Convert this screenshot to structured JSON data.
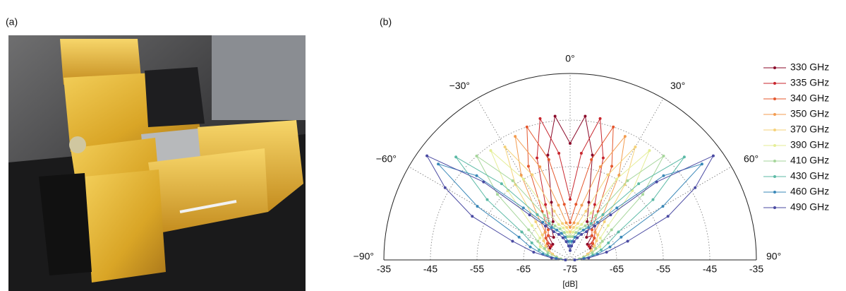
{
  "panel_labels": [
    "(a)",
    "(b)"
  ],
  "chart_data": {
    "type": "polar-half",
    "xlabel": "[dB]",
    "x": [
      -90,
      -84,
      -78,
      -72,
      -66,
      -60,
      -54,
      -48,
      -42,
      -36,
      -30,
      -24,
      -18,
      -12,
      -6,
      0,
      6,
      12,
      18,
      24,
      30,
      36,
      42,
      48,
      54,
      60,
      66,
      72,
      78,
      84,
      90
    ],
    "rlim": [
      -75,
      -35
    ],
    "rticks": [
      -75,
      -65,
      -55,
      -45,
      -35
    ],
    "thetaticks": [
      {
        "value": -90,
        "label": "−90°"
      },
      {
        "value": -60,
        "label": "−60°"
      },
      {
        "value": -30,
        "label": "−30°"
      },
      {
        "value": 0,
        "label": "0°"
      },
      {
        "value": 30,
        "label": "30°"
      },
      {
        "value": 60,
        "label": "60°"
      },
      {
        "value": 90,
        "label": "90°"
      }
    ],
    "grid": true,
    "legend": "right",
    "series": [
      {
        "name": "330 GHz",
        "color": "#8b0a2a",
        "values": [
          -74,
          -73,
          -72,
          -71,
          -70,
          -70,
          -69,
          -70,
          -68,
          -69,
          -67,
          -66,
          -62,
          -52,
          -44,
          -50,
          -44,
          -52,
          -62,
          -66,
          -67,
          -69,
          -68,
          -70,
          -69,
          -70,
          -70,
          -71,
          -72,
          -73,
          -74
        ]
      },
      {
        "name": "335 GHz",
        "color": "#c8262e",
        "values": [
          -74,
          -73,
          -72,
          -71,
          -70,
          -69,
          -70,
          -68,
          -67,
          -66,
          -66,
          -62,
          -52,
          -44,
          -52,
          -62,
          -52,
          -44,
          -52,
          -62,
          -66,
          -66,
          -67,
          -68,
          -70,
          -69,
          -70,
          -71,
          -72,
          -73,
          -74
        ]
      },
      {
        "name": "340 GHz",
        "color": "#e4572e",
        "values": [
          -74,
          -73,
          -72,
          -71,
          -70,
          -69,
          -69,
          -68,
          -68,
          -67,
          -63,
          -53,
          -45,
          -53,
          -63,
          -67,
          -63,
          -53,
          -45,
          -53,
          -63,
          -67,
          -68,
          -68,
          -69,
          -69,
          -70,
          -71,
          -72,
          -73,
          -74
        ]
      },
      {
        "name": "350 GHz",
        "color": "#f39c50",
        "values": [
          -74,
          -73,
          -72,
          -71,
          -70,
          -69,
          -68,
          -67,
          -67,
          -63,
          -54,
          -46,
          -54,
          -63,
          -67,
          -68,
          -67,
          -63,
          -54,
          -46,
          -54,
          -63,
          -67,
          -67,
          -68,
          -69,
          -70,
          -71,
          -72,
          -73,
          -74
        ]
      },
      {
        "name": "370 GHz",
        "color": "#f5d27a",
        "values": [
          -74,
          -73,
          -72,
          -71,
          -70,
          -69,
          -68,
          -67,
          -64,
          -55,
          -47,
          -55,
          -64,
          -67,
          -68,
          -69,
          -68,
          -67,
          -64,
          -55,
          -47,
          -55,
          -64,
          -67,
          -68,
          -69,
          -70,
          -71,
          -72,
          -73,
          -74
        ]
      },
      {
        "name": "390 GHz",
        "color": "#e4ee96",
        "values": [
          -74,
          -73,
          -72,
          -70,
          -68,
          -67,
          -67,
          -64,
          -55,
          -46,
          -55,
          -64,
          -67,
          -68,
          -69,
          -70,
          -69,
          -68,
          -67,
          -64,
          -55,
          -46,
          -55,
          -64,
          -67,
          -67,
          -68,
          -70,
          -72,
          -73,
          -74
        ]
      },
      {
        "name": "410 GHz",
        "color": "#a6d69b",
        "values": [
          -74,
          -73,
          -72,
          -70,
          -69,
          -67,
          -64,
          -54,
          -45,
          -54,
          -64,
          -67,
          -68,
          -69,
          -70,
          -70,
          -70,
          -69,
          -68,
          -67,
          -64,
          -54,
          -45,
          -54,
          -64,
          -67,
          -69,
          -70,
          -72,
          -73,
          -74
        ]
      },
      {
        "name": "430 GHz",
        "color": "#5cbaa6",
        "values": [
          -74,
          -72,
          -70,
          -68,
          -66,
          -63,
          -53,
          -42,
          -53,
          -63,
          -66,
          -68,
          -69,
          -70,
          -71,
          -71,
          -71,
          -70,
          -69,
          -68,
          -66,
          -63,
          -53,
          -42,
          -53,
          -63,
          -66,
          -68,
          -70,
          -72,
          -74
        ]
      },
      {
        "name": "460 GHz",
        "color": "#3a88b8",
        "values": [
          -74,
          -72,
          -69,
          -66,
          -63,
          -52,
          -40,
          -48,
          -60,
          -65,
          -67,
          -68,
          -69,
          -70,
          -71,
          -72,
          -71,
          -70,
          -69,
          -68,
          -67,
          -65,
          -60,
          -48,
          -40,
          -52,
          -63,
          -66,
          -69,
          -72,
          -74
        ]
      },
      {
        "name": "490 GHz",
        "color": "#4a4aa2",
        "values": [
          -74,
          -71,
          -67,
          -62,
          -52,
          -44,
          -37,
          -50,
          -62,
          -66,
          -68,
          -69,
          -70,
          -71,
          -72,
          -73,
          -72,
          -71,
          -70,
          -69,
          -68,
          -66,
          -62,
          -50,
          -37,
          -44,
          -52,
          -62,
          -67,
          -71,
          -74
        ]
      }
    ]
  }
}
